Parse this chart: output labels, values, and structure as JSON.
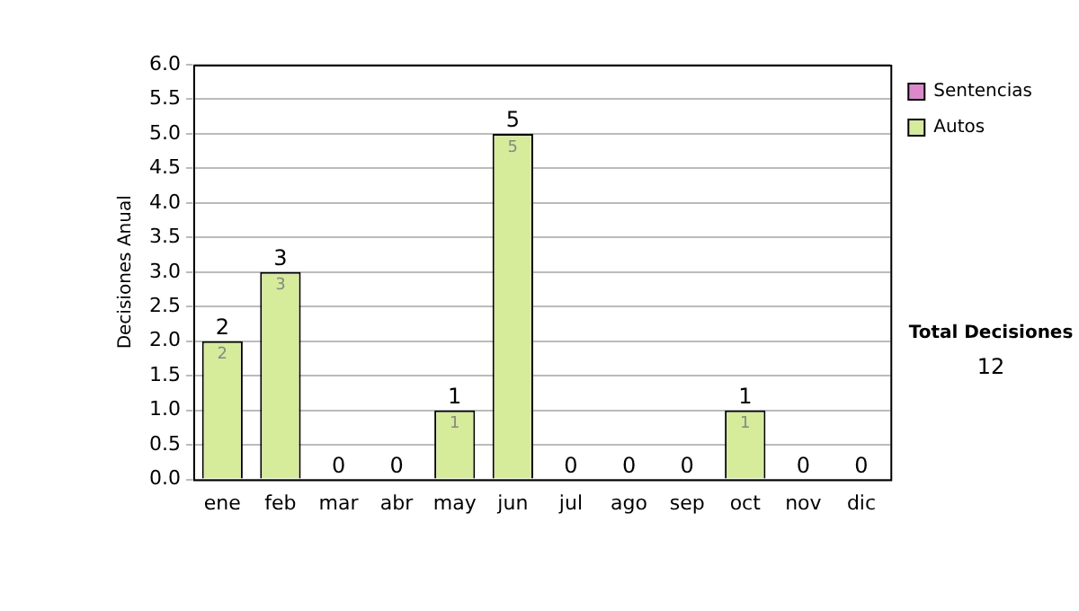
{
  "chart_data": {
    "type": "bar",
    "stacked": true,
    "ylabel": "Decisiones Anual",
    "categories": [
      "ene",
      "feb",
      "mar",
      "abr",
      "may",
      "jun",
      "jul",
      "ago",
      "sep",
      "oct",
      "nov",
      "dic"
    ],
    "series": [
      {
        "name": "Sentencias",
        "color": "#dd88cc",
        "values": [
          0,
          0,
          0,
          0,
          0,
          0,
          0,
          0,
          0,
          0,
          0,
          0
        ]
      },
      {
        "name": "Autos",
        "color": "#d6ec9a",
        "values": [
          2,
          3,
          0,
          0,
          1,
          5,
          0,
          0,
          0,
          1,
          0,
          0
        ],
        "value_labels": [
          "2",
          "3",
          null,
          null,
          "1",
          "5",
          null,
          null,
          null,
          "1",
          null,
          null
        ]
      }
    ],
    "totals": [
      "2",
      "3",
      "0",
      "0",
      "1",
      "5",
      "0",
      "0",
      "0",
      "1",
      "0",
      "0"
    ],
    "ylim": [
      0,
      6
    ],
    "yticks": [
      {
        "value": 0,
        "label": "0.0"
      },
      {
        "value": 0.5,
        "label": "0.5"
      },
      {
        "value": 1,
        "label": "1.0"
      },
      {
        "value": 1.5,
        "label": "1.5"
      },
      {
        "value": 2,
        "label": "2.0"
      },
      {
        "value": 2.5,
        "label": "2.5"
      },
      {
        "value": 3,
        "label": "3.0"
      },
      {
        "value": 3.5,
        "label": "3.5"
      },
      {
        "value": 4,
        "label": "4.0"
      },
      {
        "value": 4.5,
        "label": "4.5"
      },
      {
        "value": 5,
        "label": "5.0"
      },
      {
        "value": 5.5,
        "label": "5.5"
      },
      {
        "value": 6,
        "label": "6.0"
      }
    ],
    "grid": "y",
    "legend": "right",
    "annotations": [
      "Total Decisiones",
      "12"
    ]
  }
}
